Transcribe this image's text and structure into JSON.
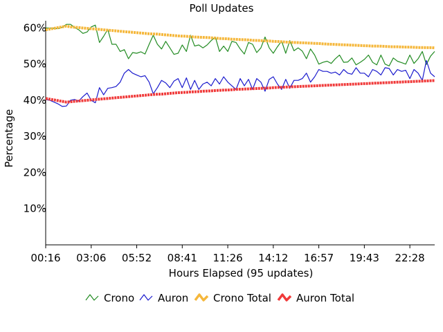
{
  "chart_data": {
    "type": "line",
    "title": "Poll Updates",
    "xlabel": "Hours Elapsed (95 updates)",
    "ylabel": "Percentage",
    "ylim": [
      0,
      62
    ],
    "y_ticks": [
      "10%",
      "20%",
      "30%",
      "40%",
      "50%",
      "60%"
    ],
    "y_tick_values": [
      10,
      20,
      30,
      40,
      50,
      60
    ],
    "x_ticks": [
      "00:16",
      "03:06",
      "05:52",
      "08:41",
      "11:26",
      "14:12",
      "16:57",
      "19:43",
      "22:28"
    ],
    "x_tick_indices": [
      0,
      11,
      22,
      33,
      44,
      55,
      66,
      77,
      88
    ],
    "update_count": 95,
    "grid": false,
    "legend_position": "bottom",
    "series": [
      {
        "name": "Crono",
        "color": "#228b22",
        "values": [
          60.0,
          60.0,
          59.9,
          59.8,
          60.2,
          61.0,
          61.0,
          60.1,
          59.5,
          58.5,
          58.9,
          60.3,
          60.8,
          56.0,
          57.7,
          59.6,
          55.5,
          55.5,
          53.5,
          54.0,
          51.5,
          53.2,
          53.0,
          53.4,
          52.8,
          55.5,
          58.0,
          55.5,
          54.2,
          56.3,
          54.5,
          52.7,
          53.0,
          55.3,
          53.5,
          58.0,
          55.0,
          55.3,
          54.5,
          55.3,
          56.5,
          57.5,
          53.5,
          55.0,
          53.5,
          56.3,
          56.0,
          54.2,
          52.8,
          56.0,
          55.5,
          53.2,
          54.5,
          57.5,
          54.5,
          53.0,
          54.8,
          56.4,
          53.0,
          56.5,
          53.7,
          54.5,
          53.6,
          51.5,
          54.2,
          52.5,
          50.0,
          50.5,
          50.8,
          50.2,
          51.5,
          52.5,
          50.5,
          50.6,
          51.7,
          49.8,
          50.5,
          51.3,
          52.5,
          50.5,
          49.8,
          52.5,
          50.0,
          49.5,
          51.7,
          50.8,
          50.4,
          50.0,
          52.5,
          50.2,
          51.5,
          53.5,
          49.9,
          52.2,
          53.5
        ]
      },
      {
        "name": "Auron",
        "color": "#1a1acd",
        "values": [
          40.2,
          40.0,
          39.5,
          39.0,
          38.3,
          38.4,
          40.0,
          40.2,
          39.8,
          41.0,
          42.0,
          40.0,
          39.3,
          43.5,
          41.5,
          43.3,
          43.5,
          43.8,
          45.0,
          47.5,
          48.5,
          47.5,
          47.0,
          46.5,
          46.8,
          45.0,
          41.8,
          43.5,
          45.5,
          44.8,
          43.5,
          45.3,
          46.0,
          43.5,
          46.2,
          43.0,
          45.5,
          43.0,
          44.5,
          45.0,
          44.0,
          46.0,
          44.5,
          46.5,
          45.0,
          44.0,
          43.0,
          46.0,
          44.0,
          45.8,
          43.0,
          46.0,
          45.0,
          42.5,
          45.8,
          46.5,
          44.5,
          43.0,
          45.8,
          43.3,
          45.5,
          45.5,
          46.0,
          47.5,
          45.0,
          46.5,
          48.5,
          48.0,
          48.0,
          47.5,
          47.8,
          47.0,
          48.5,
          47.5,
          47.2,
          49.0,
          47.5,
          47.5,
          46.5,
          48.5,
          48.0,
          47.0,
          49.0,
          48.8,
          47.0,
          48.5,
          48.0,
          48.3,
          46.0,
          48.5,
          47.5,
          45.5,
          51.0,
          47.5,
          46.5
        ]
      },
      {
        "name": "Crono Total",
        "color": "#f5b73b",
        "values": [
          59.5,
          59.7,
          59.9,
          60.1,
          60.3,
          60.5,
          60.3,
          60.2,
          60.1,
          60.0,
          59.9,
          59.8,
          59.7,
          59.6,
          59.5,
          59.4,
          59.3,
          59.2,
          59.1,
          59.0,
          58.9,
          58.8,
          58.7,
          58.6,
          58.5,
          58.4,
          58.35,
          58.3,
          58.2,
          58.1,
          58.0,
          57.9,
          57.8,
          57.75,
          57.7,
          57.6,
          57.5,
          57.45,
          57.4,
          57.35,
          57.3,
          57.2,
          57.1,
          57.05,
          57.0,
          56.9,
          56.85,
          56.8,
          56.75,
          56.7,
          56.6,
          56.55,
          56.5,
          56.45,
          56.4,
          56.3,
          56.25,
          56.2,
          56.1,
          56.05,
          56.0,
          55.95,
          55.9,
          55.85,
          55.8,
          55.75,
          55.7,
          55.6,
          55.55,
          55.5,
          55.45,
          55.4,
          55.35,
          55.3,
          55.25,
          55.2,
          55.15,
          55.1,
          55.05,
          55.0,
          55.0,
          54.95,
          54.9,
          54.85,
          54.8,
          54.8,
          54.75,
          54.7,
          54.7,
          54.65,
          54.6,
          54.6,
          54.55,
          54.55,
          54.5
        ]
      },
      {
        "name": "Auron Total",
        "color": "#f03a3a",
        "values": [
          40.5,
          40.3,
          40.1,
          39.9,
          39.7,
          39.5,
          39.6,
          39.7,
          39.8,
          39.9,
          40.0,
          40.1,
          40.2,
          40.3,
          40.4,
          40.5,
          40.6,
          40.7,
          40.8,
          40.9,
          41.0,
          41.1,
          41.2,
          41.3,
          41.4,
          41.5,
          41.6,
          41.65,
          41.7,
          41.8,
          41.9,
          42.0,
          42.1,
          42.15,
          42.2,
          42.3,
          42.35,
          42.4,
          42.5,
          42.55,
          42.6,
          42.7,
          42.75,
          42.8,
          42.85,
          42.9,
          43.0,
          43.05,
          43.1,
          43.15,
          43.2,
          43.25,
          43.3,
          43.35,
          43.4,
          43.5,
          43.55,
          43.6,
          43.65,
          43.7,
          43.75,
          43.8,
          43.85,
          43.9,
          43.95,
          44.0,
          44.05,
          44.1,
          44.15,
          44.2,
          44.25,
          44.3,
          44.35,
          44.4,
          44.45,
          44.5,
          44.55,
          44.6,
          44.65,
          44.7,
          44.75,
          44.8,
          44.85,
          44.9,
          44.95,
          45.0,
          45.05,
          45.1,
          45.15,
          45.2,
          45.25,
          45.3,
          45.35,
          45.4,
          45.45
        ]
      }
    ]
  }
}
